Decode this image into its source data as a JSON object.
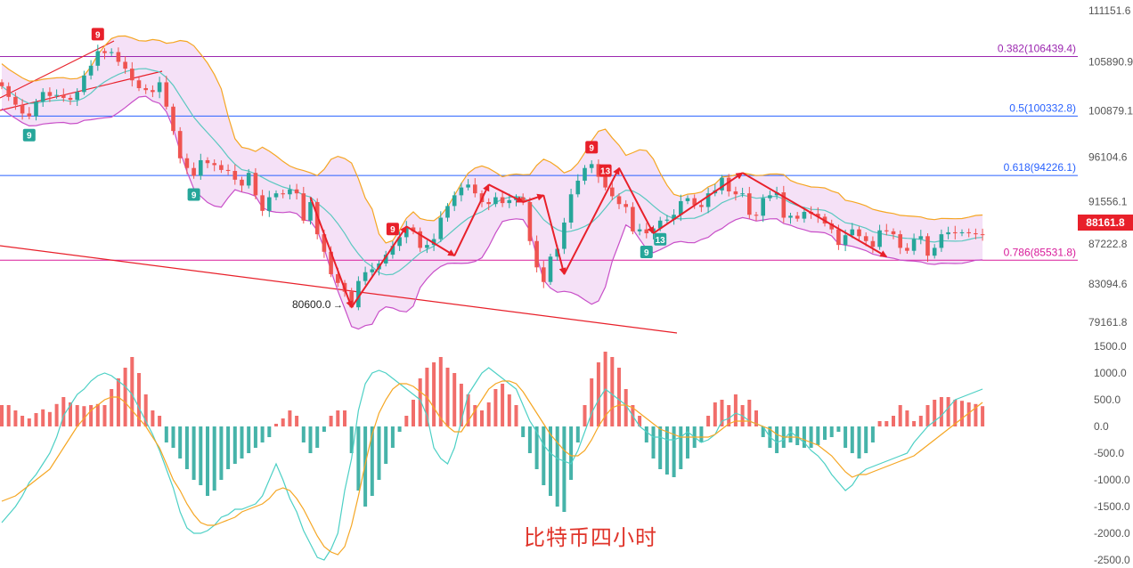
{
  "caption": "比特币四小时",
  "price_axis_labels": [
    "111151.6",
    "105890.9",
    "100879.1",
    "96104.6",
    "91556.1",
    "87222.8",
    "83094.6",
    "79161.8"
  ],
  "macd_axis_labels": [
    "1500.0",
    "1000.0",
    "500.0",
    "0.0",
    "-500.0",
    "-1000.0",
    "-1500.0",
    "-2000.0",
    "-2500.0"
  ],
  "colors": {
    "up": "#26a69a",
    "down": "#ef5350",
    "trend_arrow": "#e8202a",
    "band_fill": "#f3d9f5",
    "band_upper": "#f5a623",
    "band_lower": "#c84fc8",
    "band_mid": "#5bc8c0",
    "fib_purple": "#9c27b0",
    "fib_blue": "#2962ff",
    "fib_magenta": "#d81b9a",
    "price_tag": "#e8202a",
    "macd_pos": "#ef5350",
    "macd_neg": "#26a69a",
    "macd_line": "#4dd0c5",
    "signal_line": "#f5a623"
  },
  "chart_data": [
    {
      "type": "candlestick",
      "title": "",
      "y_axis_ticks": [
        111151.6,
        105890.9,
        100879.1,
        96104.6,
        91556.1,
        87222.8,
        83094.6,
        79161.8
      ],
      "ylim": [
        77300,
        112500
      ],
      "last_price": 88161.8,
      "last_price_label": "88161.8",
      "low_annotation": {
        "value": 80600.0,
        "label": "80600.0"
      },
      "fib_levels": [
        {
          "ratio": 0.382,
          "price": 106439.4,
          "label": "0.382(106439.4)",
          "color": "#9c27b0"
        },
        {
          "ratio": 0.5,
          "price": 100332.8,
          "label": "0.5(100332.8)",
          "color": "#2962ff"
        },
        {
          "ratio": 0.618,
          "price": 94226.1,
          "label": "0.618(94226.1)",
          "color": "#2962ff"
        },
        {
          "ratio": 0.786,
          "price": 85531.8,
          "label": "0.786(85531.8)",
          "color": "#d81b9a"
        }
      ],
      "td_markers": [
        {
          "bar": 14,
          "label": "9",
          "color": "#e8202a",
          "position": "above"
        },
        {
          "bar": 4,
          "label": "9",
          "color": "#26a69a",
          "position": "below"
        },
        {
          "bar": 28,
          "label": "9",
          "color": "#26a69a",
          "position": "below"
        },
        {
          "bar": 57,
          "label": "9",
          "color": "#e8202a",
          "position": "above"
        },
        {
          "bar": 86,
          "label": "9",
          "color": "#e8202a",
          "position": "above"
        },
        {
          "bar": 88,
          "label": "13",
          "color": "#e8202a",
          "position": "above"
        },
        {
          "bar": 94,
          "label": "9",
          "color": "#26a69a",
          "position": "below"
        },
        {
          "bar": 96,
          "label": "13",
          "color": "#26a69a",
          "position": "below"
        }
      ],
      "closes": [
        103400,
        102300,
        101500,
        100600,
        100300,
        101800,
        102800,
        102400,
        102500,
        102200,
        102000,
        102800,
        104500,
        105500,
        107000,
        106800,
        106900,
        105900,
        105200,
        104000,
        103200,
        103000,
        102800,
        103800,
        101300,
        98800,
        96000,
        95000,
        94200,
        95800,
        95500,
        95300,
        94800,
        94700,
        93800,
        93200,
        94500,
        92200,
        90600,
        92000,
        92400,
        92300,
        92800,
        92400,
        89600,
        91500,
        88200,
        86400,
        84100,
        83200,
        82300,
        80700,
        83400,
        84300,
        84600,
        85200,
        86100,
        87000,
        87900,
        88900,
        88500,
        86800,
        87100,
        87700,
        89900,
        91100,
        92200,
        93000,
        93300,
        92400,
        91500,
        91300,
        92000,
        91400,
        91700,
        92000,
        91500,
        87500,
        84800,
        83300,
        85900,
        86700,
        89400,
        92300,
        93700,
        95000,
        95400,
        94100,
        93000,
        92100,
        91300,
        91000,
        88500,
        88700,
        88300,
        88800,
        89600,
        89700,
        90200,
        91600,
        91900,
        91200,
        91000,
        92400,
        92700,
        94000,
        92600,
        92300,
        92400,
        90200,
        90100,
        91900,
        92200,
        92500,
        89900,
        90100,
        89800,
        90500,
        90300,
        90000,
        89300,
        88700,
        87100,
        88100,
        88700,
        88000,
        87500,
        86900,
        88600,
        88500,
        88200,
        86800,
        86500,
        87700,
        88000,
        86000,
        86800,
        88200,
        88400,
        88300,
        88400,
        88300,
        88200,
        88162
      ],
      "macd": {
        "y_axis_ticks": [
          1500.0,
          1000.0,
          500.0,
          0.0,
          -500.0,
          -1000.0,
          -1500.0,
          -2000.0,
          -2500.0
        ],
        "ylim": [
          -2500,
          1500
        ],
        "histogram": [
          400,
          400,
          300,
          200,
          150,
          250,
          320,
          270,
          420,
          550,
          450,
          400,
          380,
          400,
          420,
          400,
          700,
          900,
          1100,
          1300,
          1000,
          600,
          300,
          200,
          -300,
          -400,
          -600,
          -800,
          -1000,
          -1100,
          -1300,
          -1200,
          -1000,
          -800,
          -700,
          -600,
          -500,
          -400,
          -300,
          -200,
          50,
          150,
          300,
          200,
          -300,
          -500,
          -400,
          -100,
          200,
          300,
          300,
          -500,
          -1200,
          -1500,
          -1300,
          -1000,
          -700,
          -400,
          -100,
          200,
          500,
          900,
          1100,
          1200,
          1300,
          1100,
          1000,
          800,
          600,
          400,
          300,
          450,
          700,
          800,
          600,
          400,
          -200,
          -500,
          -800,
          -1100,
          -1300,
          -1500,
          -1600,
          -1000,
          -300,
          400,
          900,
          1200,
          1400,
          1300,
          1100,
          700,
          400,
          200,
          -300,
          -600,
          -800,
          -900,
          -950,
          -800,
          -600,
          -400,
          -300,
          200,
          450,
          500,
          400,
          600,
          400,
          500,
          300,
          -200,
          -400,
          -500,
          -400,
          -300,
          -350,
          -400,
          -400,
          -350,
          -250,
          -200,
          -100,
          -400,
          -500,
          -600,
          -500,
          -300,
          100,
          100,
          200,
          400,
          300,
          100,
          200,
          400,
          500,
          550,
          550,
          500,
          480,
          450,
          420,
          380
        ],
        "macd_line": [
          -1800,
          -1650,
          -1500,
          -1300,
          -1050,
          -900,
          -700,
          -500,
          -200,
          200,
          400,
          600,
          700,
          850,
          950,
          1000,
          950,
          850,
          750,
          600,
          350,
          100,
          -150,
          -450,
          -800,
          -1150,
          -1600,
          -1900,
          -2000,
          -2000,
          -1950,
          -1850,
          -1700,
          -1650,
          -1550,
          -1550,
          -1500,
          -1450,
          -1300,
          -1000,
          -700,
          -1000,
          -1350,
          -1600,
          -1950,
          -2200,
          -2450,
          -2500,
          -2300,
          -2000,
          -1200,
          -600,
          300,
          800,
          1000,
          1050,
          1000,
          900,
          800,
          700,
          600,
          500,
          200,
          -400,
          -600,
          -700,
          -400,
          100,
          600,
          800,
          1000,
          1100,
          1000,
          900,
          800,
          700,
          400,
          100,
          -100,
          -350,
          -500,
          -600,
          -650,
          -700,
          -450,
          -100,
          250,
          500,
          700,
          600,
          500,
          400,
          200,
          0,
          -100,
          -200,
          -200,
          -250,
          -250,
          -200,
          -100,
          -200,
          -300,
          -250,
          -150,
          100,
          150,
          250,
          200,
          100,
          50,
          0,
          -200,
          -300,
          -250,
          -100,
          -200,
          -300,
          -450,
          -550,
          -700,
          -900,
          -1050,
          -1200,
          -1100,
          -900,
          -800,
          -750,
          -700,
          -650,
          -600,
          -550,
          -500,
          -300,
          -150,
          0,
          100,
          200,
          350,
          500,
          550,
          600,
          650,
          700
        ],
        "signal_line": [
          -1400,
          -1350,
          -1300,
          -1200,
          -1100,
          -1000,
          -900,
          -800,
          -600,
          -400,
          -200,
          0,
          150,
          300,
          400,
          500,
          550,
          550,
          450,
          300,
          150,
          0,
          -200,
          -400,
          -700,
          -1000,
          -1200,
          -1450,
          -1650,
          -1800,
          -1850,
          -1850,
          -1800,
          -1750,
          -1700,
          -1600,
          -1550,
          -1500,
          -1450,
          -1350,
          -1200,
          -1150,
          -1200,
          -1350,
          -1550,
          -1800,
          -2050,
          -2250,
          -2350,
          -2400,
          -2250,
          -1850,
          -1300,
          -700,
          -150,
          250,
          500,
          700,
          800,
          800,
          750,
          650,
          550,
          350,
          150,
          0,
          -100,
          -100,
          100,
          300,
          500,
          700,
          800,
          850,
          850,
          800,
          650,
          450,
          250,
          50,
          -150,
          -300,
          -450,
          -550,
          -550,
          -450,
          -250,
          0,
          200,
          350,
          400,
          400,
          350,
          250,
          150,
          50,
          -50,
          -100,
          -150,
          -200,
          -200,
          -200,
          -200,
          -200,
          -150,
          -50,
          50,
          100,
          100,
          100,
          50,
          0,
          -50,
          -150,
          -200,
          -200,
          -200,
          -250,
          -300,
          -350,
          -450,
          -550,
          -700,
          -850,
          -950,
          -900,
          -900,
          -850,
          -800,
          -750,
          -700,
          -650,
          -600,
          -550,
          -450,
          -350,
          -250,
          -150,
          -50,
          50,
          150,
          250,
          350,
          450
        ]
      }
    }
  ]
}
